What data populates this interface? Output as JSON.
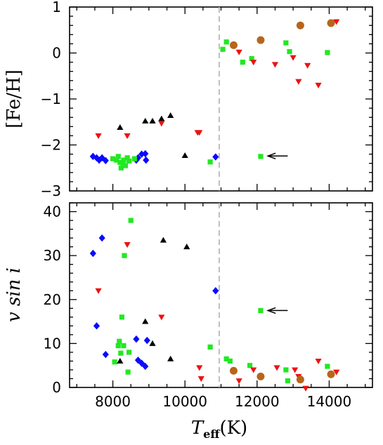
{
  "chart_data": [
    {
      "type": "scatter",
      "panel": "top",
      "ylabel": "[Fe/H]",
      "xlim": [
        6800,
        15200
      ],
      "ylim": [
        -3,
        1
      ],
      "xticks": [
        8000,
        10000,
        12000,
        14000
      ],
      "yticks": [
        -3,
        -2,
        -1,
        0,
        1
      ],
      "ytick_labels": [
        "−3",
        "−2",
        "−1",
        "0",
        "1"
      ],
      "grid": false,
      "vline": {
        "x": 10950,
        "style": "dashed",
        "color": "#b0b0b0"
      },
      "annotation": {
        "type": "arrow",
        "pointing": "left",
        "tip": [
          12300,
          -2.24
        ],
        "tail": [
          12850,
          -2.24
        ]
      },
      "series": [
        {
          "marker": "diamond",
          "color": "#0a0aff",
          "points": [
            [
              7450,
              -2.25
            ],
            [
              7550,
              -2.28
            ],
            [
              7620,
              -2.33
            ],
            [
              7700,
              -2.28
            ],
            [
              7800,
              -2.34
            ],
            [
              8650,
              -2.33
            ],
            [
              8700,
              -2.28
            ],
            [
              8800,
              -2.2
            ],
            [
              8900,
              -2.19
            ],
            [
              8920,
              -2.33
            ],
            [
              10850,
              -2.26
            ]
          ]
        },
        {
          "marker": "square",
          "color": "#22e822",
          "points": [
            [
              8000,
              -2.3
            ],
            [
              8100,
              -2.33
            ],
            [
              8150,
              -2.25
            ],
            [
              8200,
              -2.38
            ],
            [
              8230,
              -2.5
            ],
            [
              8280,
              -2.42
            ],
            [
              8300,
              -2.33
            ],
            [
              8350,
              -2.45
            ],
            [
              8400,
              -2.28
            ],
            [
              8450,
              -2.35
            ],
            [
              8600,
              -2.3
            ],
            [
              10700,
              -2.37
            ],
            [
              11050,
              0.08
            ],
            [
              11150,
              0.24
            ],
            [
              11600,
              -0.2
            ],
            [
              11850,
              -0.12
            ],
            [
              12100,
              -2.25
            ],
            [
              12800,
              0.22
            ],
            [
              12900,
              0.03
            ],
            [
              13950,
              0.01
            ]
          ]
        },
        {
          "marker": "triangle-up",
          "color": "#000000",
          "points": [
            [
              8200,
              -1.62
            ],
            [
              8900,
              -1.48
            ],
            [
              9100,
              -1.48
            ],
            [
              9350,
              -1.43
            ],
            [
              9600,
              -1.36
            ],
            [
              10000,
              -2.23
            ]
          ]
        },
        {
          "marker": "triangle-down",
          "color": "#ee1111",
          "points": [
            [
              7600,
              -1.8
            ],
            [
              8400,
              -1.8
            ],
            [
              9350,
              -1.53
            ],
            [
              10350,
              -1.73
            ],
            [
              10400,
              -1.73
            ],
            [
              11500,
              0.02
            ],
            [
              11900,
              -0.2
            ],
            [
              12500,
              -0.25
            ],
            [
              13000,
              -0.1
            ],
            [
              13150,
              -0.62
            ],
            [
              13400,
              -0.27
            ],
            [
              13700,
              -0.7
            ],
            [
              14200,
              0.68
            ]
          ]
        },
        {
          "marker": "circle",
          "color": "#b8651b",
          "points": [
            [
              11350,
              0.17
            ],
            [
              12100,
              0.28
            ],
            [
              13200,
              0.6
            ],
            [
              14050,
              0.65
            ]
          ]
        }
      ]
    },
    {
      "type": "scatter",
      "panel": "bottom",
      "xlabel": "T_eff (K)",
      "xlabel_main": "T",
      "xlabel_sub": "eff",
      "xlabel_unit": "(K)",
      "ylabel": "v sin i",
      "xlim": [
        6800,
        15200
      ],
      "ylim": [
        0,
        42
      ],
      "xticks": [
        8000,
        10000,
        12000,
        14000
      ],
      "xtick_labels": [
        "8000",
        "10000",
        "12000",
        "14000"
      ],
      "yticks": [
        0,
        10,
        20,
        30,
        40
      ],
      "ytick_labels": [
        "0",
        "10",
        "20",
        "30",
        "40"
      ],
      "grid": false,
      "vline": {
        "x": 10950,
        "style": "dashed",
        "color": "#b0b0b0"
      },
      "annotation": {
        "type": "arrow",
        "pointing": "left",
        "tip": [
          12300,
          17.5
        ],
        "tail": [
          12850,
          17.5
        ]
      },
      "series": [
        {
          "marker": "diamond",
          "color": "#0a0aff",
          "points": [
            [
              7450,
              30.5
            ],
            [
              7550,
              14
            ],
            [
              7700,
              34
            ],
            [
              7800,
              7.5
            ],
            [
              8650,
              11
            ],
            [
              8700,
              6.2
            ],
            [
              8800,
              5.5
            ],
            [
              8900,
              4.8
            ],
            [
              8950,
              10.7
            ],
            [
              10850,
              22
            ]
          ]
        },
        {
          "marker": "square",
          "color": "#22e822",
          "points": [
            [
              8050,
              5.8
            ],
            [
              8150,
              9.5
            ],
            [
              8180,
              10.5
            ],
            [
              8220,
              7.8
            ],
            [
              8250,
              16
            ],
            [
              8300,
              9.5
            ],
            [
              8320,
              30
            ],
            [
              8420,
              3.5
            ],
            [
              8450,
              8
            ],
            [
              8500,
              38
            ],
            [
              10700,
              9.2
            ],
            [
              11150,
              6.5
            ],
            [
              11250,
              6
            ],
            [
              11800,
              5
            ],
            [
              12100,
              17.5
            ],
            [
              12800,
              4
            ],
            [
              12850,
              1.5
            ],
            [
              13950,
              4.8
            ]
          ]
        },
        {
          "marker": "triangle-up",
          "color": "#000000",
          "points": [
            [
              8200,
              6
            ],
            [
              8900,
              15
            ],
            [
              9100,
              10
            ],
            [
              9400,
              33.5
            ],
            [
              9600,
              6.5
            ],
            [
              10050,
              32
            ]
          ]
        },
        {
          "marker": "triangle-down",
          "color": "#ee1111",
          "points": [
            [
              7600,
              22
            ],
            [
              8400,
              32.5
            ],
            [
              9350,
              16
            ],
            [
              10400,
              4.5
            ],
            [
              10450,
              2
            ],
            [
              11500,
              1.5
            ],
            [
              11900,
              4
            ],
            [
              12550,
              4.5
            ],
            [
              13050,
              4
            ],
            [
              13150,
              2.5
            ],
            [
              13350,
              -0.2
            ],
            [
              13700,
              6
            ],
            [
              14200,
              3.5
            ]
          ]
        },
        {
          "marker": "circle",
          "color": "#b8651b",
          "points": [
            [
              11350,
              3.8
            ],
            [
              12100,
              2.5
            ],
            [
              13200,
              1.8
            ],
            [
              14050,
              3
            ]
          ]
        }
      ]
    }
  ]
}
